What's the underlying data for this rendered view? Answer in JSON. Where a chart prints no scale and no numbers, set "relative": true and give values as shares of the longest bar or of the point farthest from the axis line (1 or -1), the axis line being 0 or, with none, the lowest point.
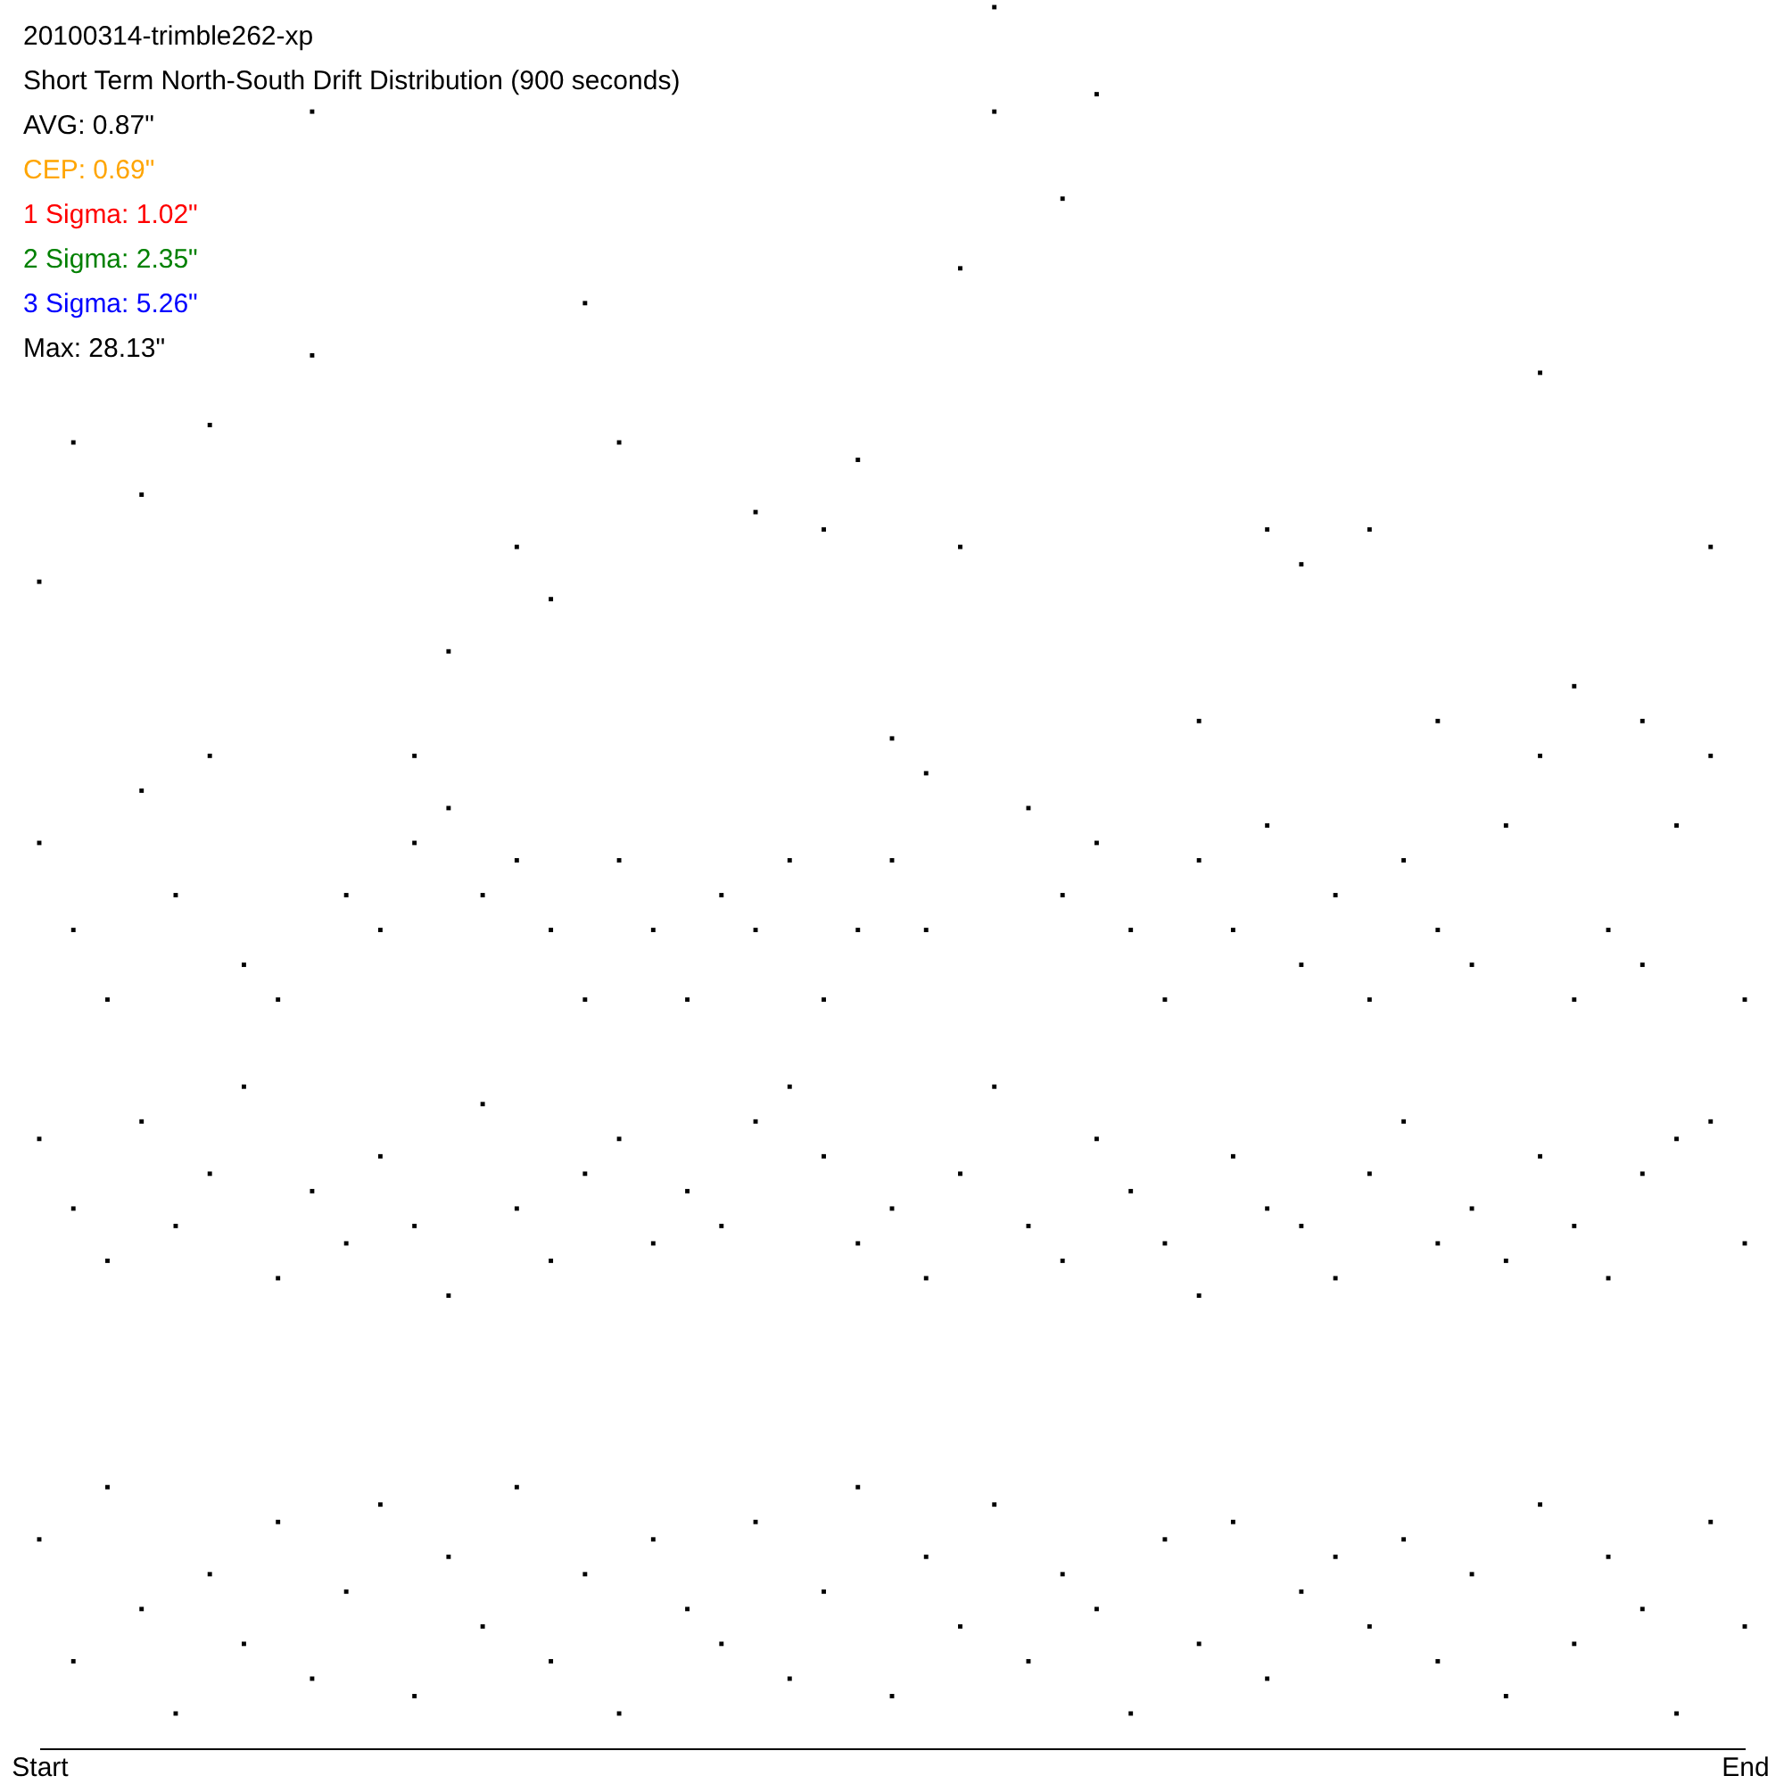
{
  "chart_data": {
    "type": "scatter",
    "title": "20100314-trimble262-xp",
    "subtitle": "Short Term North-South Drift Distribution (900 seconds)",
    "annotations": [
      "AVG: 0.87\"",
      "CEP: 0.69\"",
      "1 Sigma: 1.02\"",
      "2 Sigma: 2.35\"",
      "3 Sigma: 5.26\"",
      "Max: 28.13\""
    ],
    "relative": true,
    "marker": "square",
    "tick_labels": "x",
    "categories": [
      "Start",
      null,
      null,
      null,
      null,
      null,
      null,
      null,
      null,
      null,
      null,
      null,
      null,
      null,
      null,
      null,
      null,
      null,
      null,
      null,
      null,
      null,
      null,
      null,
      null,
      null,
      null,
      null,
      null,
      null,
      null,
      null,
      null,
      null,
      null,
      null,
      null,
      null,
      null,
      null,
      null,
      null,
      null,
      null,
      null,
      null,
      null,
      null,
      null,
      null,
      "End"
    ],
    "series": [
      {
        "color": "#000000",
        "values": [
          0.67,
          0.75,
          null,
          0.72,
          null,
          0.76,
          null,
          null,
          0.94,
          null,
          null,
          0.57,
          0.63,
          null,
          0.69,
          0.66,
          0.83,
          0.75,
          null,
          null,
          null,
          0.71,
          null,
          0.7,
          0.74,
          0.58,
          0.56,
          0.85,
          1.0,
          null,
          0.89,
          0.95,
          null,
          null,
          0.59,
          null,
          0.7,
          0.68,
          null,
          0.7,
          null,
          0.59,
          null,
          null,
          0.79,
          0.61,
          null,
          0.59,
          null,
          0.69,
          null
        ]
      },
      {
        "color": "#000000",
        "values": [
          0.52,
          0.47,
          0.43,
          0.55,
          0.49,
          0.57,
          0.45,
          0.43,
          0.8,
          0.49,
          0.47,
          0.52,
          0.54,
          0.49,
          0.51,
          0.47,
          0.43,
          0.51,
          0.47,
          0.43,
          0.49,
          0.47,
          0.51,
          0.43,
          0.47,
          0.51,
          0.47,
          0.69,
          0.94,
          0.54,
          0.49,
          0.52,
          0.47,
          0.43,
          0.51,
          0.47,
          0.53,
          0.45,
          0.49,
          0.43,
          0.51,
          0.47,
          0.45,
          0.53,
          0.57,
          0.43,
          0.47,
          0.45,
          0.53,
          0.57,
          0.43
        ]
      },
      {
        "color": "#000000",
        "values": [
          0.35,
          0.31,
          0.28,
          0.36,
          0.3,
          0.33,
          0.38,
          0.27,
          0.32,
          0.29,
          0.34,
          0.3,
          0.26,
          0.37,
          0.31,
          0.28,
          0.33,
          0.35,
          0.29,
          0.32,
          0.3,
          0.36,
          0.38,
          0.34,
          0.29,
          0.31,
          0.27,
          0.33,
          0.38,
          0.3,
          0.28,
          0.35,
          0.32,
          0.29,
          0.26,
          0.34,
          0.31,
          0.3,
          0.27,
          0.33,
          0.36,
          0.29,
          0.31,
          0.28,
          0.34,
          0.3,
          0.27,
          0.33,
          0.35,
          0.36,
          0.29
        ]
      },
      {
        "color": "#000000",
        "values": [
          0.12,
          0.05,
          0.15,
          0.08,
          0.02,
          0.1,
          0.06,
          0.13,
          0.04,
          0.09,
          0.14,
          0.03,
          0.11,
          0.07,
          0.15,
          0.05,
          0.1,
          0.02,
          0.12,
          0.08,
          0.06,
          0.13,
          0.04,
          0.09,
          0.15,
          0.03,
          0.11,
          0.07,
          0.14,
          0.05,
          0.1,
          0.08,
          0.02,
          0.12,
          0.06,
          0.13,
          0.04,
          0.09,
          0.11,
          0.07,
          0.12,
          0.05,
          0.1,
          0.03,
          0.14,
          0.06,
          0.11,
          0.08,
          0.02,
          0.13,
          0.07
        ]
      }
    ]
  }
}
